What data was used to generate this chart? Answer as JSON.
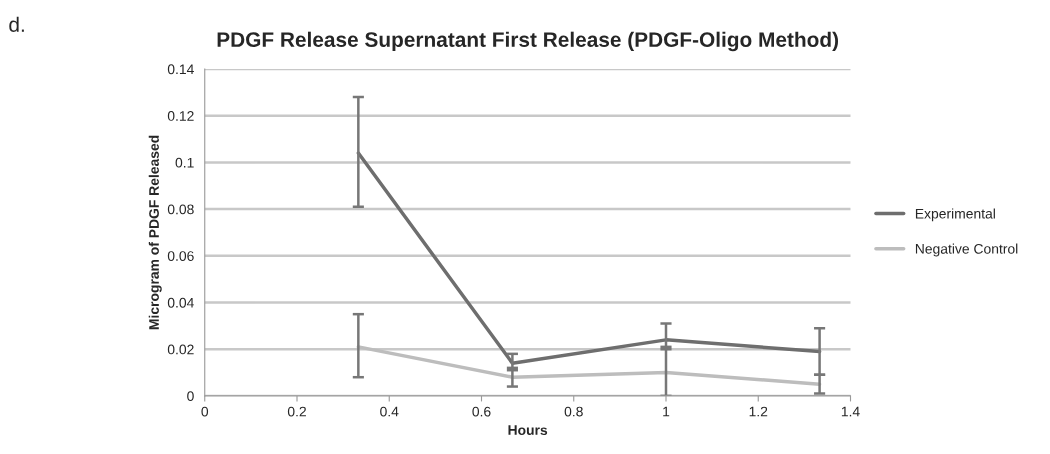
{
  "chart_data": {
    "type": "line",
    "title": "PDGF Release Supernatant First Release (PDGF-Oligo Method)",
    "xlabel": "Hours",
    "ylabel": "Microgram of PDGF Released",
    "annotations": [
      "d."
    ],
    "x": [
      0.333,
      0.667,
      1.0,
      1.333
    ],
    "series": [
      {
        "name": "Experimental",
        "color": "#6e6e6e",
        "values": [
          0.104,
          0.014,
          0.024,
          0.019
        ],
        "errors": [
          [
            0.081,
            0.128
          ],
          [
            0.011,
            0.018
          ],
          [
            0.02,
            0.031
          ],
          [
            0.009,
            0.029
          ]
        ]
      },
      {
        "name": "Negative Control",
        "color": "#bdbdbd",
        "values": [
          0.021,
          0.008,
          0.01,
          0.005
        ],
        "errors": [
          [
            0.008,
            0.035
          ],
          [
            0.004,
            0.012
          ],
          [
            0.0,
            0.021
          ],
          [
            0.001,
            0.009
          ]
        ]
      }
    ],
    "xlim": [
      0,
      1.4
    ],
    "xticks": [
      0,
      0.2,
      0.4,
      0.6,
      0.8,
      1,
      1.2,
      1.4
    ],
    "ylim": [
      0,
      0.14
    ],
    "yticks": [
      0,
      0.02,
      0.04,
      0.06,
      0.08,
      0.1,
      0.12,
      0.14
    ],
    "grid": "y",
    "legend": "right",
    "marker": "none",
    "line_style": "solid"
  }
}
